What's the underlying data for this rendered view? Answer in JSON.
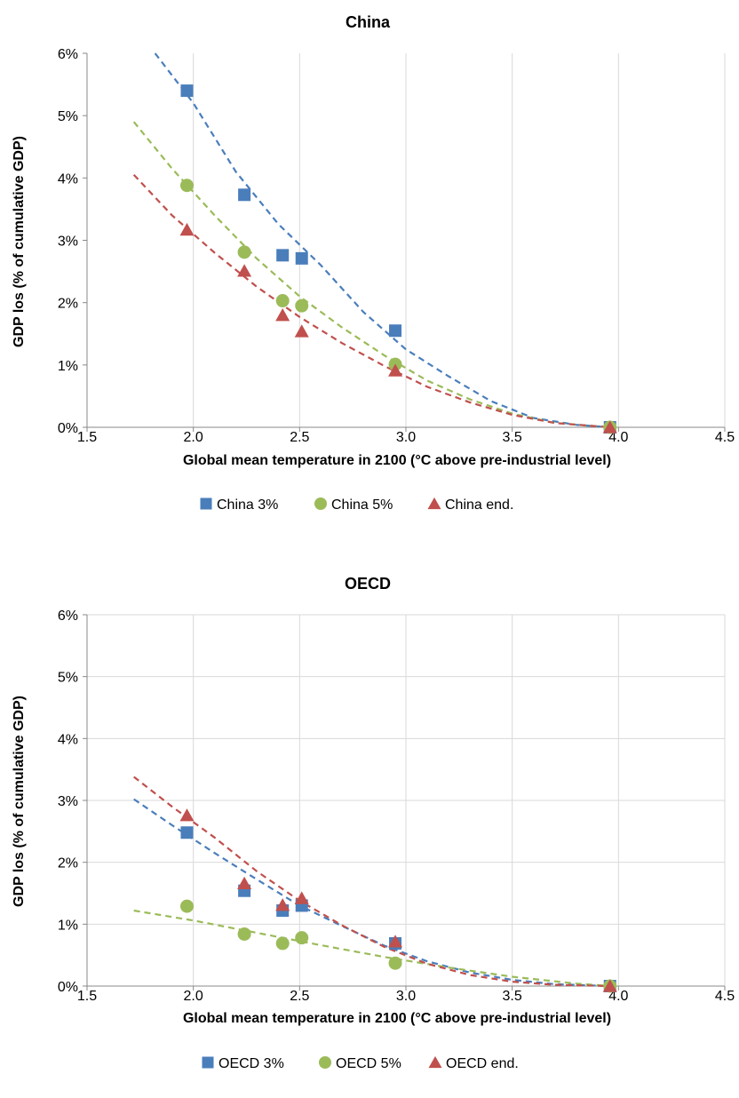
{
  "chart_data": [
    {
      "type": "scatter",
      "title": "China",
      "xlabel": "Global mean temperature in 2100 (°C above pre-industrial level)",
      "ylabel": "GDP los (% of cumulative GDP)",
      "xlim": [
        1.5,
        4.5
      ],
      "ylim": [
        0,
        6
      ],
      "x_ticks": [
        "1.5",
        "2.0",
        "2.5",
        "3.0",
        "3.5",
        "4.0",
        "4.5"
      ],
      "y_ticks": [
        "0%",
        "1%",
        "2%",
        "3%",
        "4%",
        "5%",
        "6%"
      ],
      "grid": "vertical",
      "legend_position": "bottom",
      "trendline": "dashed",
      "series": [
        {
          "name": "China 3%",
          "color": "#4A7EBB",
          "marker": "square",
          "x": [
            1.97,
            2.24,
            2.42,
            2.51,
            2.95,
            3.96
          ],
          "y": [
            5.4,
            3.73,
            2.76,
            2.71,
            1.55,
            0.0
          ],
          "trend": [
            [
              1.82,
              6.0
            ],
            [
              2.0,
              5.2
            ],
            [
              2.2,
              4.1
            ],
            [
              2.4,
              3.26
            ],
            [
              2.6,
              2.6
            ],
            [
              2.8,
              1.85
            ],
            [
              3.0,
              1.25
            ],
            [
              3.2,
              0.82
            ],
            [
              3.4,
              0.42
            ],
            [
              3.6,
              0.15
            ],
            [
              3.8,
              0.04
            ],
            [
              3.96,
              0.0
            ]
          ]
        },
        {
          "name": "China 5%",
          "color": "#9BBB59",
          "marker": "circle",
          "x": [
            1.97,
            2.24,
            2.42,
            2.51,
            2.95,
            3.96
          ],
          "y": [
            3.88,
            2.81,
            2.03,
            1.95,
            1.01,
            0.0
          ],
          "trend": [
            [
              1.72,
              4.9
            ],
            [
              1.9,
              4.15
            ],
            [
              2.1,
              3.4
            ],
            [
              2.3,
              2.7
            ],
            [
              2.5,
              2.1
            ],
            [
              2.7,
              1.6
            ],
            [
              2.9,
              1.15
            ],
            [
              3.1,
              0.75
            ],
            [
              3.3,
              0.45
            ],
            [
              3.5,
              0.22
            ],
            [
              3.7,
              0.07
            ],
            [
              3.96,
              0.0
            ]
          ]
        },
        {
          "name": "China end.",
          "color": "#C0504D",
          "marker": "triangle",
          "x": [
            1.97,
            2.24,
            2.42,
            2.51,
            2.95,
            3.96
          ],
          "y": [
            3.17,
            2.51,
            1.8,
            1.54,
            0.91,
            0.0
          ],
          "trend": [
            [
              1.72,
              4.05
            ],
            [
              1.9,
              3.4
            ],
            [
              2.1,
              2.8
            ],
            [
              2.3,
              2.25
            ],
            [
              2.5,
              1.77
            ],
            [
              2.7,
              1.35
            ],
            [
              2.9,
              0.98
            ],
            [
              3.1,
              0.65
            ],
            [
              3.3,
              0.4
            ],
            [
              3.5,
              0.2
            ],
            [
              3.7,
              0.07
            ],
            [
              3.96,
              0.0
            ]
          ]
        }
      ]
    },
    {
      "type": "scatter",
      "title": "OECD",
      "xlabel": "Global mean temperature in 2100 (°C above pre-industrial level)",
      "ylabel": "GDP los (% of cumulative GDP)",
      "xlim": [
        1.5,
        4.5
      ],
      "ylim": [
        0,
        6
      ],
      "x_ticks": [
        "1.5",
        "2.0",
        "2.5",
        "3.0",
        "3.5",
        "4.0",
        "4.5"
      ],
      "y_ticks": [
        "0%",
        "1%",
        "2%",
        "3%",
        "4%",
        "5%",
        "6%"
      ],
      "grid": "both",
      "legend_position": "bottom",
      "trendline": "dashed",
      "series": [
        {
          "name": "OECD 3%",
          "color": "#4A7EBB",
          "marker": "square",
          "x": [
            1.97,
            2.24,
            2.42,
            2.51,
            2.95,
            3.96
          ],
          "y": [
            2.48,
            1.54,
            1.22,
            1.3,
            0.69,
            0.0
          ],
          "trend": [
            [
              1.72,
              3.02
            ],
            [
              1.9,
              2.6
            ],
            [
              2.1,
              2.15
            ],
            [
              2.3,
              1.72
            ],
            [
              2.5,
              1.3
            ],
            [
              2.7,
              0.97
            ],
            [
              2.9,
              0.65
            ],
            [
              3.1,
              0.4
            ],
            [
              3.3,
              0.22
            ],
            [
              3.5,
              0.1
            ],
            [
              3.7,
              0.03
            ],
            [
              3.96,
              0.0
            ]
          ]
        },
        {
          "name": "OECD 5%",
          "color": "#9BBB59",
          "marker": "circle",
          "x": [
            1.97,
            2.24,
            2.42,
            2.51,
            2.95,
            3.96
          ],
          "y": [
            1.29,
            0.84,
            0.69,
            0.78,
            0.37,
            0.0
          ],
          "trend": [
            [
              1.72,
              1.22
            ],
            [
              2.0,
              1.06
            ],
            [
              2.3,
              0.86
            ],
            [
              2.6,
              0.66
            ],
            [
              2.9,
              0.47
            ],
            [
              3.2,
              0.3
            ],
            [
              3.5,
              0.15
            ],
            [
              3.8,
              0.04
            ],
            [
              3.96,
              0.0
            ]
          ]
        },
        {
          "name": "OECD end.",
          "color": "#C0504D",
          "marker": "triangle",
          "x": [
            1.97,
            2.24,
            2.42,
            2.51,
            2.95,
            3.96
          ],
          "y": [
            2.76,
            1.66,
            1.31,
            1.42,
            0.72,
            0.0
          ],
          "trend": [
            [
              1.72,
              3.38
            ],
            [
              1.9,
              2.9
            ],
            [
              2.1,
              2.4
            ],
            [
              2.3,
              1.85
            ],
            [
              2.5,
              1.38
            ],
            [
              2.7,
              0.98
            ],
            [
              2.9,
              0.63
            ],
            [
              3.1,
              0.36
            ],
            [
              3.3,
              0.18
            ],
            [
              3.5,
              0.07
            ],
            [
              3.7,
              0.02
            ],
            [
              3.96,
              0.0
            ]
          ]
        }
      ]
    }
  ]
}
